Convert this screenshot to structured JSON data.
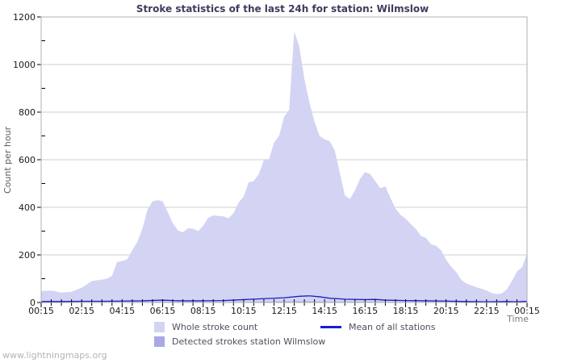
{
  "title": "Stroke statistics of the last 24h for station: Wilmslow",
  "footer": "www.lightningmaps.org",
  "y_axis": {
    "label": "Count per hour",
    "min": 0,
    "max": 1200,
    "major_step": 200,
    "minor_step": 100,
    "tick_labels": [
      "0",
      "200",
      "400",
      "600",
      "800",
      "1000",
      "1200"
    ]
  },
  "x_axis": {
    "label": "Time",
    "span_hours": 24,
    "major_step_hours": 2,
    "minor_step_hours": 0.5,
    "tick_labels": [
      "00:15",
      "02:15",
      "04:15",
      "06:15",
      "08:15",
      "10:15",
      "12:15",
      "14:15",
      "16:15",
      "18:15",
      "20:15",
      "22:15",
      "00:15"
    ]
  },
  "legend": {
    "items": [
      {
        "label": "Whole stroke count",
        "color": "#d3d3f3",
        "swatch": "area"
      },
      {
        "label": "Mean of all stations",
        "color": "#1c1ccc",
        "swatch": "line"
      },
      {
        "label": "Detected strokes station Wilmslow",
        "color": "#a9a9e6",
        "swatch": "area"
      }
    ]
  },
  "colors": {
    "grid": "#cfcfcf",
    "border": "#b2b2b2",
    "tick": "#000000",
    "tick_label": "#1a1a1a",
    "background": "#ffffff"
  },
  "chart_data": {
    "type": "area",
    "title": "Stroke statistics of the last 24h for station: Wilmslow",
    "xlabel": "Time",
    "ylabel": "Count per hour",
    "x_start_label": "00:15",
    "x_span_hours": 24,
    "ylim": [
      0,
      1200
    ],
    "grid": true,
    "legend_position": "bottom",
    "series": [
      {
        "name": "Whole stroke count",
        "type": "area",
        "color": "#d3d3f3",
        "x_step_hours": 0.25,
        "values": [
          48,
          49,
          50,
          46,
          42,
          43,
          45,
          54,
          62,
          76,
          90,
          93,
          96,
          100,
          112,
          170,
          175,
          181,
          220,
          254,
          310,
          390,
          425,
          430,
          425,
          380,
          333,
          303,
          295,
          312,
          310,
          300,
          322,
          356,
          366,
          364,
          362,
          354,
          375,
          420,
          445,
          505,
          510,
          540,
          598,
          600,
          672,
          700,
          780,
          810,
          1140,
          1075,
          940,
          840,
          760,
          700,
          685,
          678,
          640,
          545,
          450,
          435,
          470,
          520,
          548,
          540,
          510,
          480,
          488,
          440,
          395,
          368,
          352,
          330,
          310,
          280,
          272,
          245,
          238,
          220,
          180,
          150,
          128,
          95,
          80,
          72,
          64,
          58,
          50,
          40,
          35,
          38,
          55,
          90,
          130,
          148,
          205
        ]
      },
      {
        "name": "Detected strokes station Wilmslow",
        "type": "area",
        "color": "#a9a9e6",
        "points": [
          [
            0,
            1
          ],
          [
            2,
            1
          ],
          [
            4,
            2
          ],
          [
            6,
            3
          ],
          [
            8,
            2
          ],
          [
            10,
            2
          ],
          [
            12,
            4
          ],
          [
            13,
            5
          ],
          [
            14,
            3
          ],
          [
            16,
            3
          ],
          [
            18,
            2
          ],
          [
            20,
            1
          ],
          [
            22,
            1
          ],
          [
            24,
            2
          ]
        ]
      },
      {
        "name": "Mean of all stations",
        "type": "line",
        "color": "#1c1ccc",
        "points": [
          [
            0,
            4
          ],
          [
            1,
            4
          ],
          [
            2,
            5
          ],
          [
            3,
            5
          ],
          [
            4,
            6
          ],
          [
            5,
            7
          ],
          [
            6,
            10
          ],
          [
            6.5,
            8
          ],
          [
            7,
            7
          ],
          [
            8,
            7
          ],
          [
            9,
            8
          ],
          [
            10,
            12
          ],
          [
            11,
            16
          ],
          [
            12,
            20
          ],
          [
            12.75,
            26
          ],
          [
            13.25,
            28
          ],
          [
            13.75,
            24
          ],
          [
            14.25,
            18
          ],
          [
            15,
            14
          ],
          [
            16,
            12
          ],
          [
            16.5,
            13
          ],
          [
            17,
            10
          ],
          [
            18,
            8
          ],
          [
            19,
            7
          ],
          [
            20,
            6
          ],
          [
            21,
            4
          ],
          [
            22,
            3
          ],
          [
            23,
            4
          ],
          [
            23.5,
            3
          ],
          [
            24,
            5
          ]
        ]
      }
    ]
  }
}
